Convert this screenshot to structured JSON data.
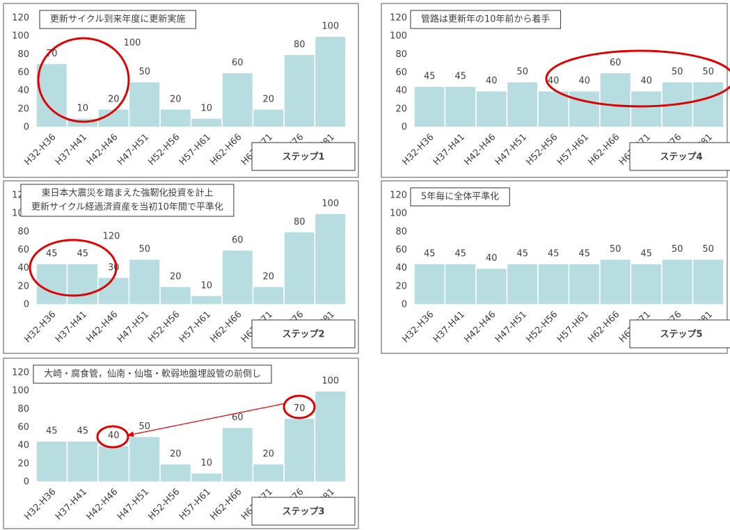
{
  "chart_data": [
    {
      "type": "bar",
      "title_lines": [
        "更新サイクル到来年度に更新実施"
      ],
      "step": "ステップ1",
      "annotations": [
        "100"
      ],
      "categories": [
        "H32-H36",
        "H37-H41",
        "H42-H46",
        "H47-H51",
        "H52-H56",
        "H57-H61",
        "H62-H66",
        "H67-H71",
        "H72-H76",
        "H77-H81"
      ],
      "values": [
        70,
        10,
        20,
        50,
        20,
        10,
        60,
        20,
        80,
        100
      ],
      "color": "#b7dde1",
      "ylim": [
        0,
        120
      ],
      "yticks": [
        0,
        20,
        40,
        60,
        80,
        100,
        120
      ]
    },
    {
      "type": "bar",
      "title_lines": [
        "東日本大震災を踏まえた強靭化投資を計上",
        "更新サイクル経過済資産を当初10年間で平準化"
      ],
      "step": "ステップ2",
      "annotations": [
        "120"
      ],
      "categories": [
        "H32-H36",
        "H37-H41",
        "H42-H46",
        "H47-H51",
        "H52-H56",
        "H57-H61",
        "H62-H66",
        "H67-H71",
        "H72-H76",
        "H77-H81"
      ],
      "values": [
        45,
        45,
        30,
        50,
        20,
        10,
        60,
        20,
        80,
        100
      ],
      "color": "#b7dde1",
      "ylim": [
        0,
        120
      ],
      "yticks": [
        0,
        20,
        40,
        60,
        80,
        100,
        120
      ]
    },
    {
      "type": "bar",
      "title_lines": [
        "大崎・腐食管，仙南・仙塩・軟弱地盤埋設管の前倒し"
      ],
      "step": "ステップ3",
      "categories": [
        "H32-H36",
        "H37-H41",
        "H42-H46",
        "H47-H51",
        "H52-H56",
        "H57-H61",
        "H62-H66",
        "H67-H71",
        "H72-H76",
        "H77-H81"
      ],
      "values": [
        45,
        45,
        40,
        50,
        20,
        10,
        60,
        20,
        70,
        100
      ],
      "color": "#b7dde1",
      "ylim": [
        0,
        120
      ],
      "yticks": [
        0,
        20,
        40,
        60,
        80,
        100,
        120
      ]
    },
    {
      "type": "bar",
      "title_lines": [
        "管路は更新年の10年前から着手"
      ],
      "step": "ステップ4",
      "categories": [
        "H32-H36",
        "H37-H41",
        "H42-H46",
        "H47-H51",
        "H52-H56",
        "H57-H61",
        "H62-H66",
        "H67-H71",
        "H72-H76",
        "H77-H81"
      ],
      "values": [
        45,
        45,
        40,
        50,
        40,
        40,
        60,
        40,
        50,
        50
      ],
      "color": "#b7dde1",
      "ylim": [
        0,
        120
      ],
      "yticks": [
        0,
        20,
        40,
        60,
        80,
        100,
        120
      ]
    },
    {
      "type": "bar",
      "title_lines": [
        "5年毎に全体平準化"
      ],
      "step": "ステップ5",
      "categories": [
        "H32-H36",
        "H37-H41",
        "H42-H46",
        "H47-H51",
        "H52-H56",
        "H57-H61",
        "H62-H66",
        "H67-H71",
        "H72-H76",
        "H77-H81"
      ],
      "values": [
        45,
        45,
        40,
        45,
        45,
        45,
        50,
        45,
        50,
        50
      ],
      "color": "#b7dde1",
      "ylim": [
        0,
        120
      ],
      "yticks": [
        0,
        20,
        40,
        60,
        80,
        100,
        120
      ]
    }
  ]
}
